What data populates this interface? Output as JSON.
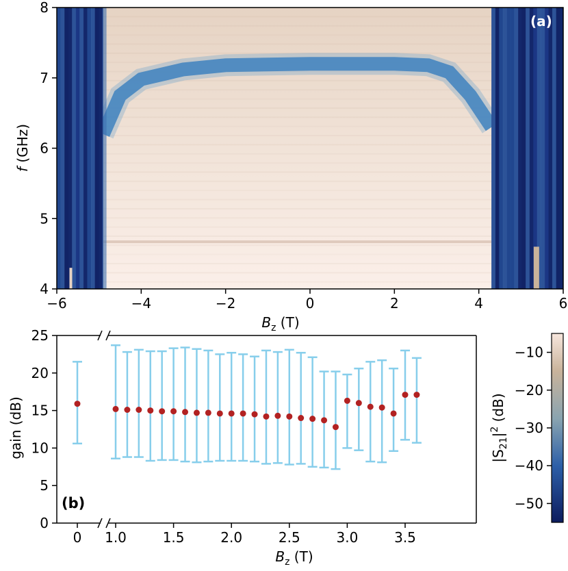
{
  "chart_data": [
    {
      "panel_label": "(a)",
      "type": "heatmap",
      "xlabel": "B",
      "xlabel_sub": "z",
      "xlabel_unit": " (T)",
      "ylabel_italic": "f",
      "ylabel_rest": " (GHz)",
      "xlim": [
        -6,
        6
      ],
      "ylim": [
        4,
        8
      ],
      "xticks": [
        -6,
        -4,
        -2,
        0,
        2,
        4,
        6
      ],
      "yticks": [
        4,
        5,
        6,
        7,
        8
      ],
      "xtick_labels": [
        "−6",
        "−4",
        "−2",
        "0",
        "2",
        "4",
        "6"
      ],
      "ytick_labels": [
        "4",
        "5",
        "6",
        "7",
        "8"
      ],
      "band_center_ghz": 7.2,
      "transmission_window_T": [
        -4.9,
        4.3
      ],
      "colorbar": {
        "label_prefix": "|S",
        "label_sub": "21",
        "label_suffix": "|",
        "label_sup": "2",
        "label_unit": " (dB)",
        "range": [
          -55,
          -5
        ],
        "ticks": [
          -10,
          -20,
          -30,
          -40,
          -50
        ],
        "tick_labels": [
          "−10",
          "−20",
          "−30",
          "−40",
          "−50"
        ],
        "colors": [
          "#0d1c5e",
          "#2d5fa8",
          "#8aa4b0",
          "#c9b39b",
          "#f7e6dd"
        ]
      }
    },
    {
      "panel_label": "(b)",
      "type": "scatter",
      "xlabel": "B",
      "xlabel_sub": "z",
      "xlabel_unit": " (T)",
      "ylabel": "gain (dB)",
      "ylim": [
        0,
        25
      ],
      "yticks": [
        0,
        5,
        10,
        15,
        20,
        25
      ],
      "ytick_labels": [
        "0",
        "5",
        "10",
        "15",
        "20",
        "25"
      ],
      "broken_x_axis": true,
      "xticks_left": [
        "0"
      ],
      "xticks_right": [
        1.0,
        1.5,
        2.0,
        2.5,
        3.0,
        3.5
      ],
      "xtick_labels_right": [
        "1.0",
        "1.5",
        "2.0",
        "2.5",
        "3.0",
        "3.5"
      ],
      "point_color": "#b22222",
      "errorbar_color": "#87ceeb",
      "points": [
        {
          "x": 0,
          "y": 15.9,
          "lo": 10.6,
          "hi": 21.5
        },
        {
          "x": 1.0,
          "y": 15.2,
          "lo": 8.6,
          "hi": 23.7
        },
        {
          "x": 1.1,
          "y": 15.1,
          "lo": 8.8,
          "hi": 22.8
        },
        {
          "x": 1.2,
          "y": 15.1,
          "lo": 8.8,
          "hi": 23.1
        },
        {
          "x": 1.3,
          "y": 15.0,
          "lo": 8.3,
          "hi": 22.9
        },
        {
          "x": 1.4,
          "y": 14.9,
          "lo": 8.4,
          "hi": 22.9
        },
        {
          "x": 1.5,
          "y": 14.9,
          "lo": 8.4,
          "hi": 23.3
        },
        {
          "x": 1.6,
          "y": 14.8,
          "lo": 8.2,
          "hi": 23.4
        },
        {
          "x": 1.7,
          "y": 14.7,
          "lo": 8.1,
          "hi": 23.2
        },
        {
          "x": 1.8,
          "y": 14.7,
          "lo": 8.2,
          "hi": 23.0
        },
        {
          "x": 1.9,
          "y": 14.6,
          "lo": 8.3,
          "hi": 22.5
        },
        {
          "x": 2.0,
          "y": 14.6,
          "lo": 8.3,
          "hi": 22.7
        },
        {
          "x": 2.1,
          "y": 14.6,
          "lo": 8.3,
          "hi": 22.5
        },
        {
          "x": 2.2,
          "y": 14.5,
          "lo": 8.2,
          "hi": 22.2
        },
        {
          "x": 2.3,
          "y": 14.2,
          "lo": 7.9,
          "hi": 23.0
        },
        {
          "x": 2.4,
          "y": 14.3,
          "lo": 8.0,
          "hi": 22.8
        },
        {
          "x": 2.5,
          "y": 14.2,
          "lo": 7.8,
          "hi": 23.1
        },
        {
          "x": 2.6,
          "y": 14.0,
          "lo": 7.9,
          "hi": 22.7
        },
        {
          "x": 2.7,
          "y": 13.9,
          "lo": 7.5,
          "hi": 22.1
        },
        {
          "x": 2.8,
          "y": 13.7,
          "lo": 7.4,
          "hi": 20.2
        },
        {
          "x": 2.9,
          "y": 12.8,
          "lo": 7.2,
          "hi": 20.2
        },
        {
          "x": 3.0,
          "y": 16.3,
          "lo": 10.0,
          "hi": 19.8
        },
        {
          "x": 3.1,
          "y": 16.0,
          "lo": 9.7,
          "hi": 20.6
        },
        {
          "x": 3.2,
          "y": 15.5,
          "lo": 8.2,
          "hi": 21.5
        },
        {
          "x": 3.3,
          "y": 15.4,
          "lo": 8.1,
          "hi": 21.7
        },
        {
          "x": 3.4,
          "y": 14.6,
          "lo": 9.6,
          "hi": 20.6
        },
        {
          "x": 3.5,
          "y": 17.1,
          "lo": 11.1,
          "hi": 23.0
        },
        {
          "x": 3.6,
          "y": 17.1,
          "lo": 10.7,
          "hi": 22.0
        }
      ]
    }
  ]
}
